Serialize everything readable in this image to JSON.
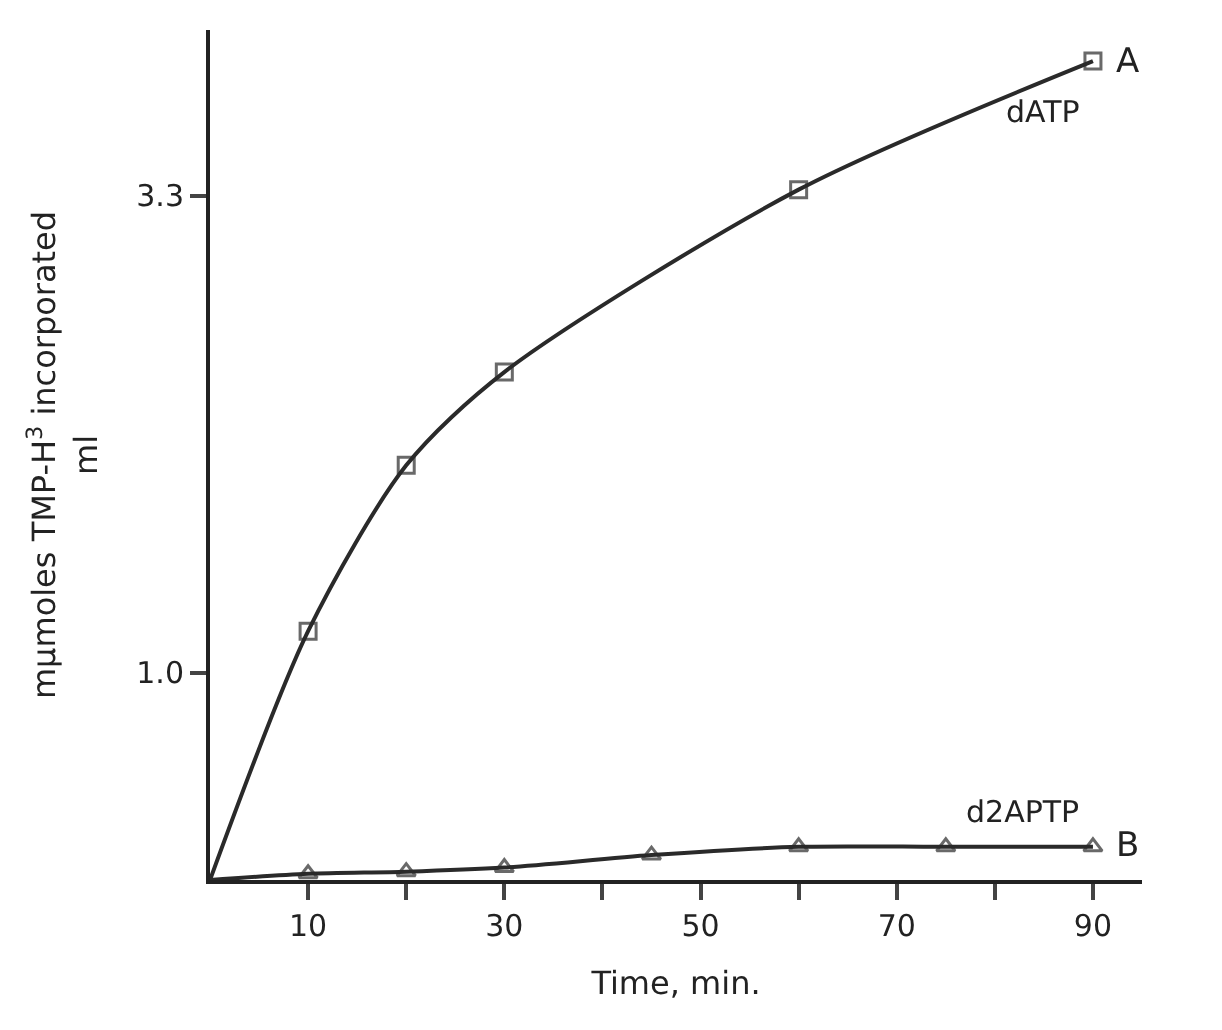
{
  "chart_data": {
    "type": "line",
    "xlabel": "Time, min.",
    "ylabel": "mμmoles TMP-H$^{3}$ incorporated\nml",
    "xlim": [
      0,
      95
    ],
    "ylim": [
      0,
      4.1
    ],
    "xticks": [
      {
        "value": 10,
        "label": "10"
      },
      {
        "value": 20,
        "label": null
      },
      {
        "value": 30,
        "label": "30"
      },
      {
        "value": 40,
        "label": null
      },
      {
        "value": 50,
        "label": "50"
      },
      {
        "value": 60,
        "label": null
      },
      {
        "value": 70,
        "label": "70"
      },
      {
        "value": 80,
        "label": null
      },
      {
        "value": 90,
        "label": "90"
      }
    ],
    "yticks": [
      {
        "value": 1.0,
        "label": "1.0"
      },
      {
        "value": 3.3,
        "label": "3.3"
      }
    ],
    "legend": false,
    "line_style": "solid",
    "series": [
      {
        "name": "dATP",
        "color": "#2a2a2a",
        "marker": "square",
        "x": [
          0,
          10,
          20,
          30,
          60,
          90
        ],
        "values": [
          0,
          1.2,
          2.0,
          2.45,
          3.33,
          3.95
        ]
      },
      {
        "name": "d2APTP",
        "color": "#2a2a2a",
        "marker": "triangle",
        "x": [
          0,
          10,
          20,
          30,
          45,
          60,
          75,
          90
        ],
        "values": [
          0,
          0.03,
          0.04,
          0.06,
          0.12,
          0.16,
          0.16,
          0.16
        ]
      }
    ],
    "annotations": [
      {
        "text": "A",
        "x": 90,
        "y": 3.95
      },
      {
        "text": "B",
        "x": 90,
        "y": 0.16
      }
    ]
  }
}
